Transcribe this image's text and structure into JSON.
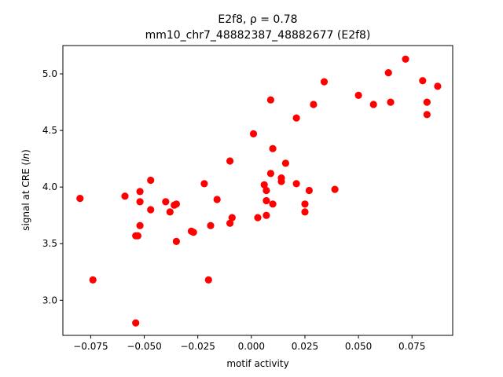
{
  "chart_data": {
    "type": "scatter",
    "title_line1": "E2f8, ρ = 0.78",
    "title_line2": "mm10_chr7_48882387_48882677 (E2f8)",
    "xlabel": "motif activity",
    "ylabel": "signal at CRE (ln)",
    "xlim": [
      -0.088,
      0.094
    ],
    "ylim": [
      2.69,
      5.25
    ],
    "xticks": [
      -0.075,
      -0.05,
      -0.025,
      0.0,
      0.025,
      0.05,
      0.075
    ],
    "xtick_labels": [
      "−0.075",
      "−0.050",
      "−0.025",
      "0.000",
      "0.025",
      "0.050",
      "0.075"
    ],
    "yticks": [
      3.0,
      3.5,
      4.0,
      4.5,
      5.0
    ],
    "ytick_labels": [
      "3.0",
      "3.5",
      "4.0",
      "4.5",
      "5.0"
    ],
    "marker_color": "#ff0000",
    "grid": false,
    "points": [
      {
        "x": -0.08,
        "y": 3.9
      },
      {
        "x": -0.074,
        "y": 3.18
      },
      {
        "x": -0.059,
        "y": 3.92
      },
      {
        "x": -0.054,
        "y": 3.57
      },
      {
        "x": -0.054,
        "y": 2.8
      },
      {
        "x": -0.053,
        "y": 3.57
      },
      {
        "x": -0.052,
        "y": 3.96
      },
      {
        "x": -0.052,
        "y": 3.87
      },
      {
        "x": -0.052,
        "y": 3.66
      },
      {
        "x": -0.047,
        "y": 4.06
      },
      {
        "x": -0.047,
        "y": 3.8
      },
      {
        "x": -0.04,
        "y": 3.87
      },
      {
        "x": -0.038,
        "y": 3.78
      },
      {
        "x": -0.036,
        "y": 3.84
      },
      {
        "x": -0.035,
        "y": 3.85
      },
      {
        "x": -0.035,
        "y": 3.52
      },
      {
        "x": -0.028,
        "y": 3.61
      },
      {
        "x": -0.027,
        "y": 3.6
      },
      {
        "x": -0.022,
        "y": 4.03
      },
      {
        "x": -0.02,
        "y": 3.18
      },
      {
        "x": -0.019,
        "y": 3.66
      },
      {
        "x": -0.016,
        "y": 3.89
      },
      {
        "x": -0.01,
        "y": 4.23
      },
      {
        "x": -0.01,
        "y": 3.68
      },
      {
        "x": -0.009,
        "y": 3.73
      },
      {
        "x": 0.001,
        "y": 4.47
      },
      {
        "x": 0.003,
        "y": 3.73
      },
      {
        "x": 0.006,
        "y": 4.02
      },
      {
        "x": 0.007,
        "y": 3.97
      },
      {
        "x": 0.007,
        "y": 3.88
      },
      {
        "x": 0.007,
        "y": 3.75
      },
      {
        "x": 0.009,
        "y": 4.77
      },
      {
        "x": 0.009,
        "y": 4.12
      },
      {
        "x": 0.01,
        "y": 4.34
      },
      {
        "x": 0.01,
        "y": 3.85
      },
      {
        "x": 0.014,
        "y": 4.08
      },
      {
        "x": 0.014,
        "y": 4.05
      },
      {
        "x": 0.016,
        "y": 4.21
      },
      {
        "x": 0.021,
        "y": 4.61
      },
      {
        "x": 0.021,
        "y": 4.03
      },
      {
        "x": 0.025,
        "y": 3.85
      },
      {
        "x": 0.025,
        "y": 3.78
      },
      {
        "x": 0.027,
        "y": 3.97
      },
      {
        "x": 0.029,
        "y": 4.73
      },
      {
        "x": 0.034,
        "y": 4.93
      },
      {
        "x": 0.039,
        "y": 3.98
      },
      {
        "x": 0.05,
        "y": 4.81
      },
      {
        "x": 0.057,
        "y": 4.73
      },
      {
        "x": 0.064,
        "y": 5.01
      },
      {
        "x": 0.065,
        "y": 4.75
      },
      {
        "x": 0.072,
        "y": 5.13
      },
      {
        "x": 0.08,
        "y": 4.94
      },
      {
        "x": 0.082,
        "y": 4.75
      },
      {
        "x": 0.082,
        "y": 4.64
      },
      {
        "x": 0.087,
        "y": 4.89
      }
    ]
  }
}
